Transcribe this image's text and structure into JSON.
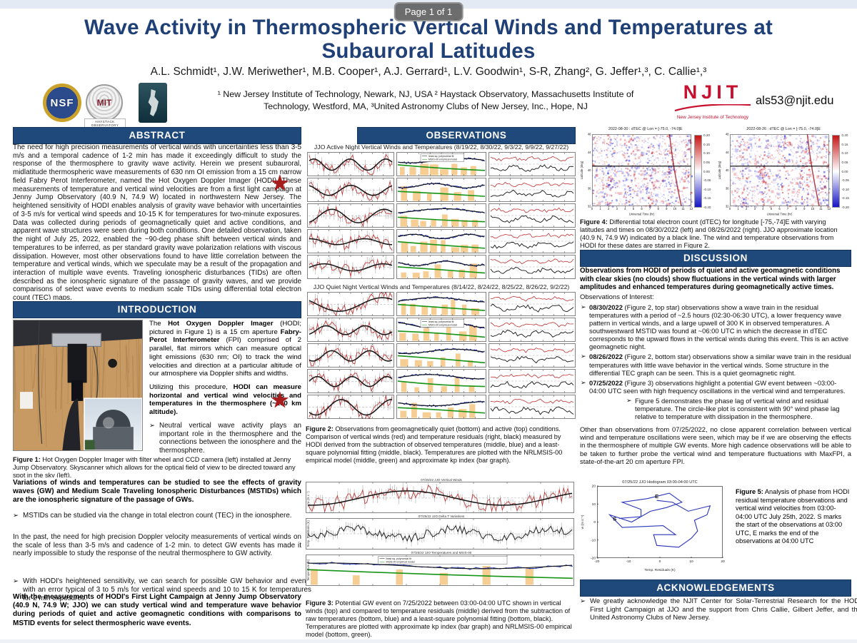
{
  "viewer": {
    "page_indicator": "Page 1 of 1"
  },
  "header": {
    "title": "Wave Activity in Thermospheric Vertical Winds and Temperatures at Subauroral Latitudes",
    "authors": "A.L. Schmidt¹, J.W. Meriwether¹, M.B. Cooper¹, A.J. Gerrard¹, L.V. Goodwin¹, S-R, Zhang², G. Jeffer¹,³, C. Callie¹,³",
    "affiliations": "¹ New Jersey Institute of Technology, Newark, NJ, USA ² Haystack Observatory, Massachusetts Institute of Technology, Westford, MA, ³United Astronomy Clubs of New Jersey, Inc., Hope, NJ",
    "email": "als53@njit.edu",
    "logos": {
      "nsf": "NSF",
      "mit": "MIT",
      "mit_sub": "HAYSTACK OBSERVATORY",
      "njit": "NJIT",
      "njit_sub": "New Jersey Institute of Technology"
    }
  },
  "abstract": {
    "heading": "ABSTRACT",
    "body": "The need for high precision measurements of vertical winds with uncertainties less than 3-5 m/s and a temporal cadence of 1-2 min has made it exceedingly difficult to study the response of the thermosphere to gravity wave activity.  Herein we present subauroral, midlatitude thermospheric wave measurements of 630 nm OI emission from a 15 cm narrow field Fabry Perot Interferometer, named the Hot Oxygen Doppler Imager (HODI). These measurements of temperature and vertical wind velocities are from a first light campaign at Jenny Jump Observatory (40.9 N, 74.9 W) located in northwestern New Jersey. The heightened sensitivity of HODI enables analysis of gravity wave behavior with uncertainties of 3-5 m/s for vertical wind speeds and 10-15 K for temperatures for two-minute exposures. Data was collected during periods of geomagnetically quiet and active conditions, and apparent wave structures were seen during both conditions.  One detailed observation, taken the night of July 25, 2022, enabled the ~90-deg phase shift between vertical winds and temperatures to be inferred, as per standard gravity wave polarization relations with viscous dissipation.  However, most other observations found to have little correlation between the temperature and vertical winds, which we speculate may be a result of the propagation and interaction of multiple wave events. Traveling ionospheric disturbances (TIDs) are often described as the ionospheric signature of the passage of gravity waves, and we provide comparisons of select wave events to medium scale TIDs using differential total electron count (TEC) maps."
  },
  "introduction": {
    "heading": "INTRODUCTION",
    "p1": [
      [
        0,
        "The "
      ],
      [
        1,
        "Hot Oxygen Doppler Imager"
      ],
      [
        0,
        " (HODI; pictured in Figure 1) is a 15 cm aperture "
      ],
      [
        1,
        "Fabry-Perot Interferometer"
      ],
      [
        0,
        " (FPI) comprised of 2 parallel, flat mirrors which can measure optical light emissions (630 nm; OI) to track the wind velocities and direction at a particular altitude of our atmosphere via Doppler shifts and widths."
      ]
    ],
    "p2": [
      [
        0,
        "Utilizing this procedure, "
      ],
      [
        1,
        "HODI can measure horizontal and vertical wind velocities and temperatures in the thermosphere (~250 km altitude)."
      ]
    ],
    "bullet1": "Neutral vertical wave activity plays an important role in the thermosphere and the connections between the ionosphere and the thermosphere.",
    "bold1": "Variations of winds and temperatures can be studied to see the effects of gravity waves (GW) and Medium Scale Traveling Ionospheric Disturbances (MSTIDs) which are the ionospheric signature of the passage of GWs.",
    "bullet2": "MSTIDs can be studied via the change in total electron count (TEC) in the ionosphere.",
    "para2": "In the past, the need for high precision Doppler velocity measurements of vertical winds on the scale of less than 3-5 m/s and cadence of 1-2 min. to detect GW events has made it nearly impossible to study the response of the neutral thermosphere to GW activity.",
    "bullet3": "With HODI's heightened sensitivity, we can search for possible GW behavior and events with an error typical of 3 to 5 m/s for vertical wind speeds and 10 to 15 K for temperatures for 2 min exposures.",
    "bold2": "With the measurements of HODI's First Light Campaign at Jenny Jump Observatory (40.9 N, 74.9 W; JJO) we can study vertical wind and temperature wave behavior during periods of quiet and active geomagnetic conditions with comparisons to MSTID events for select thermospheric wave events."
  },
  "observations": {
    "heading": "OBSERVATIONS"
  },
  "discussion": {
    "heading": "DISCUSSION",
    "lead": "Observations from HODI of periods of quiet and active geomagnetic conditions with clear skies (no clouds) show fluctuations in the vertical winds with larger amplitudes and enhanced temperatures during geomagnetically active times.",
    "sub": "Observations of Interest:",
    "b1": [
      [
        1,
        "08/30/2022"
      ],
      [
        0,
        " (Figure 2, top star) observations show a wave train in the residual temperatures with a period of ~2.5 hours (02:30-06:30 UTC), a lower frequency wave pattern in vertical winds, and a large upwell of 300 K in observed temperatures. A southwestward MSTID was found at ~06:00 UTC in which the decrease in dTEC corresponds to the upward flows in the vertical winds during this event. This is an active geomagnetic night."
      ]
    ],
    "b2": [
      [
        1,
        "08/26/2022"
      ],
      [
        0,
        " (Figure 2, bottom star) observations show a similar wave train in the residual temperatures with little wave behavior in the vertical winds. Some structure in the differential TEC graph can be seen. This is a quiet geomagnetic night."
      ]
    ],
    "b3": [
      [
        1,
        "07/25/2022"
      ],
      [
        0,
        " (Figure 3) observations highlight a potential GW event between ~03:00-04:00 UTC seen with high frequency oscillations in the vertical wind and temperatures."
      ]
    ],
    "b3_nested": "Figure 5 demonstrates the phase lag of vertical wind and residual temperature. The circle-like plot is consistent with 90° wind phase lag relative to temperature with dissipation in the thermosphere.",
    "closing": "Other than observations from 07/25/2022, no close apparent correlation between vertical wind and temperature oscillations were seen, which may be if we are observing the effects in the thermosphere of multiple GW events. More high cadence observations will be able to be taken to further probe the vertical wind and temperature fluctuations with MaxFPI, a state-of-the-art 20 cm aperture FPI."
  },
  "acknowledgements": {
    "heading": "ACKNOWLEDGEMENTS",
    "bullet": "We greatly acknowledge the NJIT Center for Solar-Terrestrial Research for the HODI First Light Campaign at JJO and the support from Chris Callie, Gilbert Jeffer, and the United Astronomy Clubs of New Jersey."
  },
  "figures": {
    "fig1_caption": [
      [
        1,
        "Figure 1:"
      ],
      [
        0,
        " Hot Oxygen Doppler Imager with filter wheel and CCD camera (left) installed at Jenny Jump Observatory. Skyscanner which allows for the optical field of view to be directed toward any spot in the sky (left)."
      ]
    ],
    "fig2": {
      "active_title": "JJO Active Night Vertical Winds and Temperatures (8/19/22, 8/30/22, 9/3/22, 9/9/22, 9/27/22)",
      "quiet_title": "JJO Quiet Night Vertical Winds and Temperatures (8/14/22, 8/24/22, 8/25/22, 8/26/22, 9/2/22)",
      "legend": [
        "least sq. polynomial fit",
        "MSIS-00 empirical model"
      ],
      "active_grid": {
        "rows": 5,
        "kinds": [
          "wind",
          "temp",
          "resid"
        ],
        "seed0": 1,
        "legend_cells": [
          1
        ]
      },
      "quiet_grid": {
        "rows": 5,
        "kinds": [
          "wind",
          "temp",
          "resid"
        ],
        "seed0": 21,
        "legend_cells": [
          4
        ]
      },
      "caption": [
        [
          1,
          "Figure 2:"
        ],
        [
          0,
          " Observations from geomagnetically quiet (bottom) and active (top) conditions. Comparison of vertical winds (red) and temperature residuals (right, black) measured by HODI derived from the subtraction of observed temperatures (middle, blue) and a least-square polynomial fitting (middle, black). Temperatures are plotted with the NRLMSIS-00 empirical model (middle, green) and approximate kp index (bar graph)."
        ]
      ]
    },
    "fig3_caption": [
      [
        1,
        "Figure 3:"
      ],
      [
        0,
        " Potential GW event on 7/25/2022 between 03:00-04:00 UTC shown in vertical winds (top) and compared to temperature residuals (middle) derived from the subtraction of raw temperatures (bottom, blue) and a least-square polynomial fitting (bottom, black). Temperatures are plotted with approximate kp index (bar graph) and NRLMSIS-00 empirical model (bottom, green)."
      ]
    ],
    "fig4_caption": [
      [
        1,
        "Figure 4:"
      ],
      [
        0,
        " Differential total electron count (dTEC) for longitude [-75,-74]E with varying latitudes and times on 08/30/2022 (left) and 08/26/2022 (right). JJO approximate location (40.9 N, 74.9 W) indicated by a black line. The wind and temperature observations from HODI for these dates are starred in Figure 2."
      ]
    ],
    "fig5_caption": [
      [
        1,
        "Figure 5:"
      ],
      [
        0,
        " Analysis of phase from HODI residual temperature observations and vertical wind velocities from 03:00-04:00 UTC July 25th, 2022. S marks the start of the observations at 03:00 UTC, E marks the end of the observations at 04:00 UTC"
      ]
    ]
  },
  "chart_data": {
    "fig2_active": {
      "type": "line",
      "title": "JJO Active Night Vertical Winds and Temperatures (8/19/22, 8/30/22, 9/3/22, 9/9/22, 9/27/22)",
      "dates": [
        "8/19/22",
        "8/30/22",
        "9/3/22",
        "9/9/22",
        "9/27/22"
      ],
      "columns": [
        "vertical winds (red) with smoothed fit (black)",
        "temperatures (blue), polynomial fit (black), NRLMSIS-00 model (green), kp index (orange bars)",
        "temperature residuals (black) with vertical winds (red)"
      ],
      "xlabel": "Time (hr UTC)",
      "note": "waveform values not legible at source resolution; rendered synthetically"
    },
    "fig2_quiet": {
      "type": "line",
      "title": "JJO Quiet Night Vertical Winds and Temperatures (8/14/22, 8/24/22, 8/25/22, 8/26/22, 9/2/22)",
      "dates": [
        "8/14/22",
        "8/24/22",
        "8/25/22",
        "8/26/22",
        "9/2/22"
      ],
      "columns": [
        "vertical winds (red) with smoothed fit (black)",
        "temperatures (blue), polynomial fit (black), NRLMSIS-00 model (green), kp index (orange bars)",
        "temperature residuals (black) with vertical winds (red)"
      ],
      "xlabel": "Time (hr UTC)",
      "note": "waveform values not legible at source resolution; rendered synthetically"
    },
    "fig3": {
      "type": "line",
      "panels": [
        {
          "title": "07/25/22 JJO Vertical Winds",
          "ylabel": "w (m s⁻¹)"
        },
        {
          "title": "07/25/22 JJO Delta T Variations",
          "ylabel": "Temp. Residuals (K)"
        },
        {
          "title": "07/25/22 JJO Temperatures and MSIS-00",
          "ylabel": "Temperature (K)"
        }
      ],
      "xlabel": "Time (hr UTC)"
    },
    "fig4": {
      "type": "heatmap",
      "maps": [
        {
          "title": "2022-08-30 : dTEC @  Lon = [-75.0, -74.0]E"
        },
        {
          "title": "2022-08-26 : dTEC @  Lon = [-75.0, -74.0]E"
        }
      ],
      "xlabel": "Universal Time (hr)",
      "ylabel": "Latitude (deg)",
      "xticks": [
        0,
        1,
        2,
        3,
        4,
        5,
        6,
        7,
        8,
        9,
        10,
        11,
        12
      ],
      "yticks": [
        48,
        44,
        40,
        36,
        32
      ],
      "colorbar_ticks": [
        "0.20",
        "0.15",
        "0.10",
        "0.05",
        "0.00",
        "-0.05",
        "-0.10",
        "-0.15",
        "-0.20"
      ],
      "jjo_line_lat": 40.9
    },
    "fig5": {
      "type": "line",
      "title": "07/25/22 JJO Hodogram 03:00-04:00 UTC",
      "xlabel": "Temp. Residuals (K)",
      "ylabel": "w (m s⁻¹)",
      "xlim": [
        -20,
        20
      ],
      "ylim": [
        -20,
        20
      ],
      "xticks": [
        -20,
        -10,
        0,
        10,
        20
      ],
      "yticks": [
        -20,
        -10,
        0,
        10,
        20
      ],
      "start_label": "S",
      "end_label": "E",
      "points": [
        [
          -13,
          2
        ],
        [
          -6,
          3
        ],
        [
          -6,
          7
        ],
        [
          -12,
          11
        ],
        [
          -4,
          13
        ],
        [
          3,
          16
        ],
        [
          7,
          11
        ],
        [
          2,
          8
        ],
        [
          -3,
          6
        ],
        [
          -9,
          0
        ],
        [
          -16,
          4
        ],
        [
          -12,
          -3
        ],
        [
          1,
          -2
        ],
        [
          5,
          -7
        ],
        [
          -2,
          -7
        ],
        [
          -1,
          -13
        ],
        [
          6,
          -14
        ],
        [
          10,
          -9
        ],
        [
          12,
          -5
        ],
        [
          11,
          1
        ],
        [
          15,
          4
        ],
        [
          16,
          9
        ],
        [
          9,
          6
        ],
        [
          4,
          11
        ],
        [
          -1,
          12
        ]
      ]
    }
  },
  "colors": {
    "header_bar": "#20497b",
    "title_text": "#1f3f77",
    "star_red": "#a81c1c",
    "wind_red": "#c03232",
    "smooth_black": "#141414",
    "temp_blue": "#2436ae",
    "model_green": "#169416",
    "kp_orange": "#f6cd92",
    "err_gray": "rgba(120,120,120,0.55)",
    "hodo_blue": "#2a35b8",
    "heat_red": "#d42020",
    "heat_blue": "#2828d4",
    "njit_red": "#c8102e"
  }
}
